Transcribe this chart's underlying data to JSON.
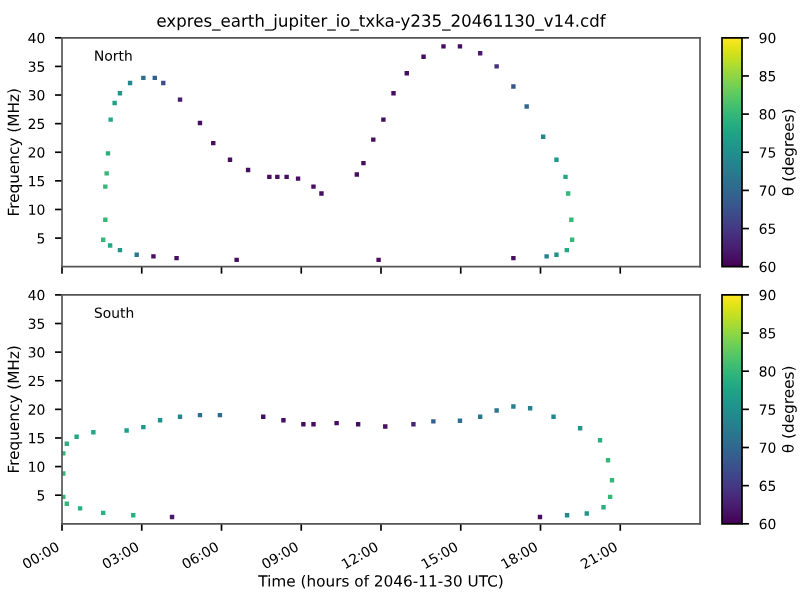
{
  "chart_data": [
    {
      "type": "scatter",
      "title": "expres_earth_jupiter_io_txka-y235_20461130_v14.cdf",
      "ylabel": "Frequency (MHz)",
      "clabel": "θ (degrees)",
      "annotations": [
        "North"
      ],
      "marker": "square",
      "grid": false,
      "tick_labels": "y",
      "xlim": [
        0,
        24
      ],
      "ylim": [
        0,
        40
      ],
      "xticks": [
        0,
        3,
        6,
        9,
        12,
        15,
        18,
        21
      ],
      "yticks": [
        5,
        10,
        15,
        20,
        25,
        30,
        35,
        40
      ],
      "clim": [
        60,
        90
      ],
      "cticks": [
        60,
        65,
        70,
        75,
        80,
        85,
        90
      ],
      "x": [
        1.55,
        1.63,
        1.63,
        1.68,
        1.73,
        1.83,
        1.98,
        2.18,
        2.56,
        3.06,
        3.49,
        3.81,
        4.44,
        5.19,
        5.69,
        6.32,
        7.0,
        7.8,
        8.1,
        8.45,
        8.88,
        9.46,
        9.76,
        11.09,
        11.34,
        11.71,
        12.09,
        12.47,
        12.97,
        13.6,
        14.35,
        14.97,
        15.73,
        16.35,
        16.98,
        17.48,
        18.1,
        18.6,
        18.94,
        19.04,
        19.16,
        19.19,
        18.99,
        18.6,
        18.23,
        16.98,
        11.91,
        6.57,
        4.31,
        3.44,
        2.81,
        2.18,
        1.81
      ],
      "values": [
        4.7,
        8.2,
        14,
        16.3,
        19.8,
        25.7,
        28.6,
        30.3,
        32.1,
        33.0,
        33.0,
        32.1,
        29.2,
        25.1,
        21.6,
        18.7,
        16.9,
        15.7,
        15.7,
        15.7,
        15.4,
        14.0,
        12.8,
        16.1,
        18.1,
        22.2,
        25.7,
        30.3,
        33.8,
        36.7,
        38.5,
        38.5,
        37.3,
        35.0,
        31.5,
        28.0,
        22.7,
        18.7,
        15.7,
        12.8,
        8.2,
        4.7,
        2.9,
        2.1,
        1.8,
        1.5,
        1.2,
        1.2,
        1.5,
        1.8,
        2.1,
        2.9,
        3.7
      ],
      "cvalues": [
        80,
        80,
        80,
        80,
        79,
        78,
        77,
        76,
        74,
        71,
        69,
        67,
        62,
        61,
        61,
        61,
        61,
        61,
        61,
        61,
        61,
        61,
        61,
        61,
        61,
        61,
        61,
        61,
        61,
        61,
        61,
        61,
        62,
        64,
        68,
        70,
        74,
        76,
        78,
        80,
        80,
        80,
        78,
        75,
        73,
        61,
        61,
        61,
        61,
        61,
        72,
        76,
        78
      ]
    },
    {
      "type": "scatter",
      "ylabel": "Frequency (MHz)",
      "xlabel": "Time (hours of 2046-11-30 UTC)",
      "clabel": "θ (degrees)",
      "annotations": [
        "South"
      ],
      "marker": "square",
      "grid": false,
      "xlim": [
        0,
        24
      ],
      "ylim": [
        0,
        40
      ],
      "xticks": [
        {
          "value": 0,
          "label": "00:00"
        },
        {
          "value": 3,
          "label": "03:00"
        },
        {
          "value": 6,
          "label": "06:00"
        },
        {
          "value": 9,
          "label": "09:00"
        },
        {
          "value": 12,
          "label": "12:00"
        },
        {
          "value": 15,
          "label": "15:00"
        },
        {
          "value": 18,
          "label": "18:00"
        },
        {
          "value": 21,
          "label": "21:00"
        }
      ],
      "yticks": [
        5,
        10,
        15,
        20,
        25,
        30,
        35,
        40
      ],
      "clim": [
        60,
        90
      ],
      "cticks": [
        60,
        65,
        70,
        75,
        80,
        85,
        90
      ],
      "x": [
        0.05,
        0.05,
        0.05,
        0.18,
        0.55,
        1.18,
        2.43,
        3.06,
        3.69,
        4.44,
        5.19,
        5.94,
        7.57,
        8.33,
        9.08,
        9.46,
        10.33,
        11.14,
        12.16,
        13.22,
        13.97,
        14.97,
        15.73,
        16.35,
        16.98,
        17.61,
        18.49,
        19.49,
        20.24,
        20.54,
        20.69,
        20.62,
        20.37,
        19.74,
        19.0,
        17.98,
        4.14,
        2.68,
        1.55,
        0.68,
        0.18
      ],
      "values": [
        4.7,
        8.8,
        12.3,
        14.0,
        15.2,
        16.0,
        16.3,
        16.9,
        18.1,
        18.7,
        19.0,
        19.0,
        18.7,
        18.1,
        17.4,
        17.4,
        17.6,
        17.4,
        17.0,
        17.4,
        17.9,
        18.0,
        18.7,
        19.8,
        20.5,
        20.2,
        18.7,
        16.7,
        14.6,
        11.1,
        7.6,
        4.7,
        2.9,
        1.8,
        1.5,
        1.2,
        1.2,
        1.5,
        1.9,
        2.7,
        3.5
      ],
      "cvalues": [
        80,
        80,
        80,
        79,
        78,
        78,
        77,
        76,
        75,
        74,
        71,
        70,
        61,
        61,
        61,
        61,
        61,
        61,
        61,
        63,
        69,
        71,
        72,
        72,
        73,
        73,
        74,
        76,
        79,
        80,
        80,
        80,
        79,
        76,
        74,
        61,
        62,
        79,
        79,
        79,
        80
      ]
    }
  ]
}
